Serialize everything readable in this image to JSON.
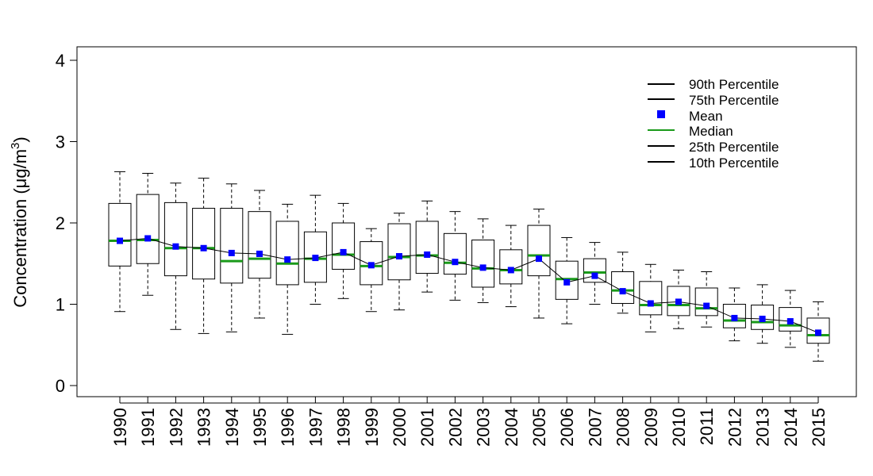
{
  "chart_data": {
    "type": "boxplot",
    "title": "",
    "xlabel": "",
    "ylabel": {
      "main": "Concentration (",
      "mu": "μ",
      "unit": "g/m",
      "sup": "3",
      "close": ")"
    },
    "ylim": [
      0,
      4
    ],
    "yticks": [
      "0",
      "1",
      "2",
      "3",
      "4"
    ],
    "legend_position": "top-right",
    "legend": {
      "p90": "90th Percentile",
      "p75": "75th Percentile",
      "mean": "Mean",
      "median": "Median",
      "p25": "25th Percentile",
      "p10": "10th Percentile"
    },
    "colors": {
      "mean": "#0000ff",
      "median": "#1a9a1a",
      "box": "#000000"
    },
    "categories": [
      "1990",
      "1991",
      "1992",
      "1993",
      "1994",
      "1995",
      "1996",
      "1997",
      "1998",
      "1999",
      "2000",
      "2001",
      "2002",
      "2003",
      "2004",
      "2005",
      "2006",
      "2007",
      "2008",
      "2009",
      "2010",
      "2011",
      "2012",
      "2013",
      "2014",
      "2015"
    ],
    "p10": [
      0.91,
      1.11,
      0.69,
      0.64,
      0.66,
      0.83,
      0.63,
      1.0,
      1.07,
      0.91,
      0.93,
      1.15,
      1.05,
      1.02,
      0.97,
      0.83,
      0.76,
      1.0,
      0.89,
      0.66,
      0.7,
      0.72,
      0.55,
      0.52,
      0.47,
      0.3
    ],
    "p25": [
      1.47,
      1.5,
      1.35,
      1.31,
      1.26,
      1.32,
      1.24,
      1.27,
      1.43,
      1.24,
      1.3,
      1.38,
      1.37,
      1.21,
      1.25,
      1.35,
      1.06,
      1.27,
      1.01,
      0.87,
      0.86,
      0.86,
      0.71,
      0.69,
      0.67,
      0.52
    ],
    "median": [
      1.78,
      1.79,
      1.69,
      1.69,
      1.53,
      1.56,
      1.5,
      1.56,
      1.61,
      1.47,
      1.58,
      1.6,
      1.51,
      1.44,
      1.42,
      1.6,
      1.31,
      1.39,
      1.17,
      0.99,
      0.99,
      0.95,
      0.8,
      0.78,
      0.74,
      0.62
    ],
    "mean": [
      1.78,
      1.81,
      1.71,
      1.69,
      1.63,
      1.62,
      1.55,
      1.57,
      1.64,
      1.48,
      1.59,
      1.61,
      1.52,
      1.45,
      1.42,
      1.56,
      1.27,
      1.35,
      1.16,
      1.01,
      1.03,
      0.98,
      0.83,
      0.82,
      0.79,
      0.65
    ],
    "p75": [
      2.24,
      2.35,
      2.25,
      2.18,
      2.18,
      2.14,
      2.02,
      1.89,
      2.0,
      1.77,
      1.99,
      2.02,
      1.87,
      1.79,
      1.67,
      1.97,
      1.53,
      1.56,
      1.4,
      1.28,
      1.22,
      1.2,
      1.0,
      0.99,
      0.96,
      0.83
    ],
    "p90": [
      2.63,
      2.61,
      2.49,
      2.55,
      2.48,
      2.4,
      2.23,
      2.34,
      2.24,
      1.93,
      2.12,
      2.27,
      2.14,
      2.05,
      1.97,
      2.17,
      1.82,
      1.76,
      1.64,
      1.49,
      1.42,
      1.4,
      1.2,
      1.24,
      1.17,
      1.03
    ]
  }
}
